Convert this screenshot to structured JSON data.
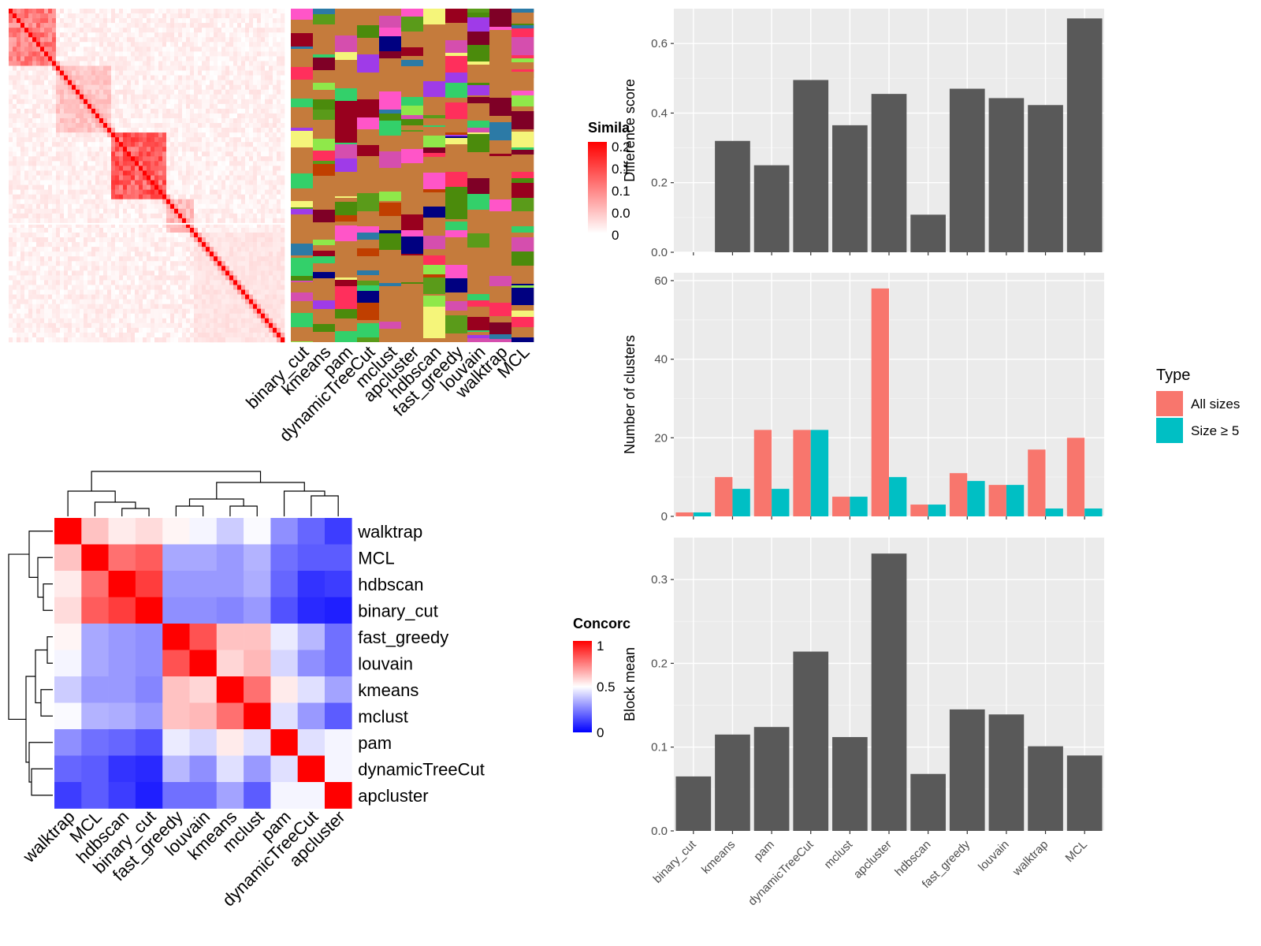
{
  "similarity_panel": {
    "legend_title": "Simila",
    "legend_ticks": [
      "0.2",
      "0.1",
      "0.1",
      "0.0",
      "0"
    ],
    "method_labels": [
      "binary_cut",
      "kmeans",
      "pam",
      "dynamicTreeCut",
      "mclust",
      "apcluster",
      "hdbscan",
      "fast_greedy",
      "louvain",
      "walktrap",
      "MCL"
    ],
    "colors": {
      "high": "#ff0000",
      "low": "#ffffff"
    }
  },
  "concordance_panel": {
    "legend_title": "Concorc",
    "legend_ticks": [
      "1",
      "0.5",
      "0"
    ],
    "colors": {
      "high": "#ff0000",
      "mid": "#ffffff",
      "low": "#0000ff"
    }
  },
  "right_legend": {
    "title": "Type",
    "items": [
      {
        "label": "All sizes",
        "color": "#F8766D"
      },
      {
        "label": "Size ≥ 5",
        "color": "#00BFC4"
      }
    ]
  },
  "chart_data": [
    {
      "type": "heatmap",
      "title": "",
      "rows": [
        "walktrap",
        "MCL",
        "hdbscan",
        "binary_cut",
        "fast_greedy",
        "louvain",
        "kmeans",
        "mclust",
        "pam",
        "dynamicTreeCut",
        "apcluster"
      ],
      "columns": [
        "walktrap",
        "MCL",
        "hdbscan",
        "binary_cut",
        "fast_greedy",
        "louvain",
        "kmeans",
        "mclust",
        "pam",
        "dynamicTreeCut",
        "apcluster"
      ],
      "values": [
        [
          1.0,
          0.62,
          0.54,
          0.57,
          0.52,
          0.48,
          0.4,
          0.49,
          0.28,
          0.2,
          0.12
        ],
        [
          0.62,
          1.0,
          0.78,
          0.82,
          0.33,
          0.33,
          0.3,
          0.35,
          0.22,
          0.18,
          0.18
        ],
        [
          0.54,
          0.78,
          1.0,
          0.88,
          0.3,
          0.3,
          0.3,
          0.34,
          0.2,
          0.1,
          0.12
        ],
        [
          0.57,
          0.82,
          0.88,
          1.0,
          0.28,
          0.28,
          0.26,
          0.3,
          0.16,
          0.08,
          0.06
        ],
        [
          0.52,
          0.33,
          0.3,
          0.28,
          1.0,
          0.84,
          0.62,
          0.62,
          0.46,
          0.36,
          0.22
        ],
        [
          0.48,
          0.33,
          0.3,
          0.28,
          0.84,
          1.0,
          0.58,
          0.64,
          0.42,
          0.28,
          0.22
        ],
        [
          0.4,
          0.3,
          0.3,
          0.26,
          0.62,
          0.58,
          1.0,
          0.78,
          0.54,
          0.44,
          0.32
        ],
        [
          0.49,
          0.35,
          0.34,
          0.3,
          0.62,
          0.64,
          0.78,
          1.0,
          0.44,
          0.3,
          0.18
        ],
        [
          0.28,
          0.22,
          0.2,
          0.16,
          0.46,
          0.42,
          0.54,
          0.44,
          1.0,
          0.44,
          0.48
        ],
        [
          0.2,
          0.18,
          0.1,
          0.08,
          0.36,
          0.28,
          0.44,
          0.3,
          0.44,
          1.0,
          0.48
        ],
        [
          0.12,
          0.18,
          0.12,
          0.06,
          0.22,
          0.22,
          0.32,
          0.18,
          0.48,
          0.48,
          1.0
        ]
      ],
      "range": [
        0,
        1
      ]
    },
    {
      "type": "bar",
      "categories": [
        "binary_cut",
        "kmeans",
        "pam",
        "dynamicTreeCut",
        "mclust",
        "apcluster",
        "hdbscan",
        "fast_greedy",
        "louvain",
        "walktrap",
        "MCL"
      ],
      "values": [
        0,
        0.32,
        0.25,
        0.495,
        0.365,
        0.455,
        0.108,
        0.47,
        0.443,
        0.423,
        0.672
      ],
      "xlabel": "",
      "ylabel": "Difference score",
      "ylim": [
        0,
        0.7
      ],
      "yticks": [
        "0.0",
        "0.2",
        "0.4",
        "0.6"
      ],
      "grid": true
    },
    {
      "type": "bar",
      "categories": [
        "binary_cut",
        "kmeans",
        "pam",
        "dynamicTreeCut",
        "mclust",
        "apcluster",
        "hdbscan",
        "fast_greedy",
        "louvain",
        "walktrap",
        "MCL"
      ],
      "series": [
        {
          "name": "All sizes",
          "values": [
            1,
            10,
            22,
            22,
            5,
            58,
            3,
            11,
            8,
            17,
            20
          ]
        },
        {
          "name": "Size ≥ 5",
          "values": [
            1,
            7,
            7,
            22,
            5,
            10,
            3,
            9,
            8,
            2,
            2
          ]
        }
      ],
      "xlabel": "",
      "ylabel": "Number of clusters",
      "ylim": [
        0,
        62
      ],
      "yticks": [
        "0",
        "20",
        "40",
        "60"
      ],
      "legend": "right",
      "grid": true
    },
    {
      "type": "bar",
      "categories": [
        "binary_cut",
        "kmeans",
        "pam",
        "dynamicTreeCut",
        "mclust",
        "apcluster",
        "hdbscan",
        "fast_greedy",
        "louvain",
        "walktrap",
        "MCL"
      ],
      "values": [
        0.065,
        0.115,
        0.124,
        0.214,
        0.112,
        0.331,
        0.068,
        0.145,
        0.139,
        0.101,
        0.09
      ],
      "xlabel": "",
      "ylabel": "Block mean",
      "ylim": [
        0,
        0.35
      ],
      "yticks": [
        "0.0",
        "0.1",
        "0.2",
        "0.3"
      ],
      "grid": true
    }
  ]
}
